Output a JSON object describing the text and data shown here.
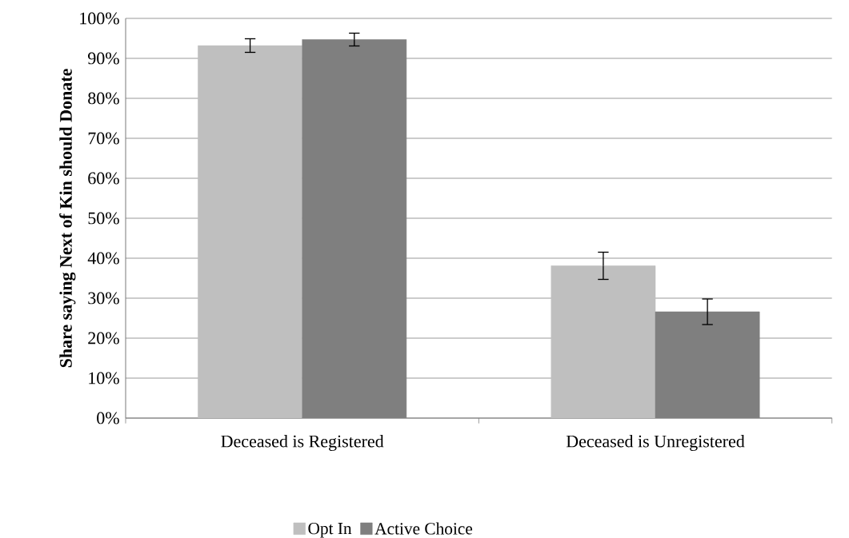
{
  "chart_data": {
    "type": "bar",
    "ylabel": "Share saying Next of Kin should Donate",
    "categories": [
      "Deceased is Registered",
      "Deceased is Unregistered"
    ],
    "series": [
      {
        "name": "Opt In",
        "color": "#bfbfbf",
        "values": [
          93.2,
          38.1
        ],
        "errors": [
          1.7,
          3.4
        ]
      },
      {
        "name": "Active Choice",
        "color": "#7f7f7f",
        "values": [
          94.7,
          26.6
        ],
        "errors": [
          1.6,
          3.2
        ]
      }
    ],
    "ylim": [
      0,
      100
    ],
    "yticks": [
      {
        "value": 0,
        "label": "0%"
      },
      {
        "value": 10,
        "label": "10%"
      },
      {
        "value": 20,
        "label": "20%"
      },
      {
        "value": 30,
        "label": "30%"
      },
      {
        "value": 40,
        "label": "40%"
      },
      {
        "value": 50,
        "label": "50%"
      },
      {
        "value": 60,
        "label": "60%"
      },
      {
        "value": 70,
        "label": "70%"
      },
      {
        "value": 80,
        "label": "80%"
      },
      {
        "value": 90,
        "label": "90%"
      },
      {
        "value": 100,
        "label": "100%"
      }
    ],
    "grid": "y",
    "legend": "bottom"
  }
}
